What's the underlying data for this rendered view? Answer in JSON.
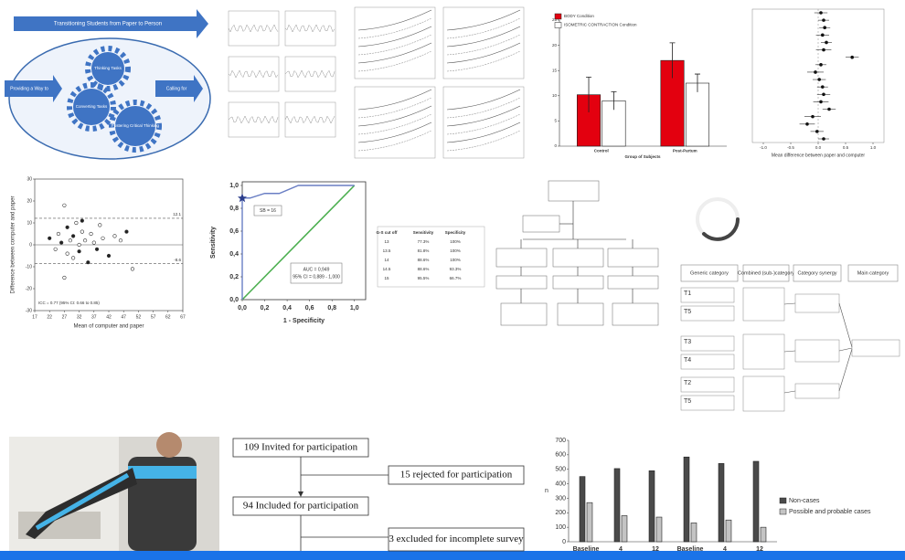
{
  "concept_diagram": {
    "banner": "Transitioning Students from Paper to Person",
    "left_arrow": "Providing a Way to",
    "right_arrow": "Calling for",
    "gears": [
      "Thinking Tasks",
      "Converting Tasks",
      "Fostering Critical Thinking"
    ]
  },
  "condition_chart": {
    "type": "bar",
    "categories": [
      "Control",
      "Post-Partum"
    ],
    "series": [
      {
        "name": "BODY Condition",
        "color": "#e3000f",
        "values": [
          10.2,
          17
        ],
        "errors": [
          3.5,
          3.5
        ]
      },
      {
        "name": "ISOMETRIC CONTRACTION Condition",
        "color": "#ffffff",
        "values": [
          9,
          12.5
        ],
        "errors": [
          1.8,
          1.8
        ]
      }
    ],
    "x_label": "Group of Subjects",
    "ylim": [
      0,
      25
    ],
    "yticks": [
      0,
      5,
      10,
      15,
      20,
      25
    ]
  },
  "forest_plot": {
    "type": "forest",
    "x_label": "Mean difference between paper and computer",
    "xlim": [
      -1.2,
      1.2
    ],
    "xticks": [
      {
        "value": -1,
        "label": "-1.0"
      },
      -0.5,
      {
        "value": 0,
        "label": "0.0"
      },
      0.5,
      {
        "value": 1,
        "label": "1.0"
      }
    ],
    "means": [
      0.05,
      0.1,
      0.12,
      0.08,
      0.15,
      0.1,
      0.62,
      0.05,
      -0.05,
      0.02,
      0.08,
      0.1,
      0.05,
      0.2,
      -0.1,
      -0.2,
      -0.02,
      0.1
    ],
    "errors": [
      0.12,
      0.1,
      0.1,
      0.12,
      0.1,
      0.14,
      0.12,
      0.1,
      0.15,
      0.12,
      0.1,
      0.12,
      0.14,
      0.12,
      0.15,
      0.14,
      0.12,
      0.1
    ]
  },
  "bland_altman": {
    "type": "scatter",
    "x_label": "Mean of computer and paper",
    "y_label": "Difference between computer and paper",
    "xlim": [
      17,
      67
    ],
    "xticks": [
      17,
      22,
      27,
      32,
      37,
      42,
      47,
      52,
      57,
      62,
      67
    ],
    "ylim": [
      -30,
      30
    ],
    "yticks": [
      -30,
      -20,
      -10,
      0,
      10,
      20,
      30
    ],
    "x": [
      22,
      24,
      25,
      26,
      27,
      28,
      28,
      29,
      30,
      30,
      31,
      32,
      32,
      33,
      34,
      35,
      36,
      37,
      38,
      39,
      40,
      42,
      44,
      46,
      48,
      50,
      27,
      33
    ],
    "y": [
      3,
      -2,
      5,
      1,
      18,
      -4,
      8,
      2,
      -6,
      4,
      10,
      0,
      -3,
      6,
      2,
      -8,
      5,
      1,
      -2,
      9,
      3,
      -5,
      4,
      2,
      6,
      -11,
      -15,
      11
    ],
    "upper_limit": 12.1,
    "lower_limit": -8.6,
    "annotation": "ICC = 0.77 (95% CI: 0.66 to 0.85)"
  },
  "roc_curve": {
    "type": "line",
    "x_label": "1 - Specificity",
    "y_label": "Sensitivity",
    "xlim": [
      0,
      1.1
    ],
    "ylim": [
      0,
      1
    ],
    "xticks": [
      {
        "value": 0,
        "label": "0,0"
      },
      {
        "value": 0.2,
        "label": "0,2"
      },
      {
        "value": 0.4,
        "label": "0,4"
      },
      {
        "value": 0.6,
        "label": "0,6"
      },
      {
        "value": 0.8,
        "label": "0,8"
      },
      {
        "value": 1,
        "label": "1,0"
      }
    ],
    "yticks": [
      {
        "value": 0,
        "label": "0,0"
      },
      {
        "value": 0.2,
        "label": "0,2"
      },
      {
        "value": 0.4,
        "label": "0,4"
      },
      {
        "value": 0.6,
        "label": "0,6"
      },
      {
        "value": 0.8,
        "label": "0,8"
      },
      {
        "value": 1,
        "label": "1,0"
      }
    ],
    "x": [
      0,
      0,
      0.07,
      0.2,
      0.33,
      0.5,
      1
    ],
    "y": [
      0,
      0.89,
      0.89,
      0.93,
      0.93,
      1,
      1
    ],
    "cut_off_label": "SB = 16",
    "annotations": [
      "AUC = 0,949",
      "95% CI = 0,889 - 1,000"
    ]
  },
  "cutoff_table": {
    "headers": [
      "G-S cut off",
      "Sensitivity",
      "Specificity"
    ],
    "rows": [
      [
        "13",
        "77.3%",
        "100%"
      ],
      [
        "13.5",
        "81.8%",
        "100%"
      ],
      [
        "14",
        "88.6%",
        "100%"
      ],
      [
        "14.5",
        "88.6%",
        "93.3%"
      ],
      [
        "15",
        "95.5%",
        "66.7%"
      ]
    ]
  },
  "category_table": {
    "headers": [
      "Generic category",
      "Combined (sub-)category",
      "Category synergy",
      "Main category"
    ],
    "codes": [
      "T1",
      "T5",
      "T3",
      "T4",
      "T2",
      "T5"
    ]
  },
  "participant_flow": {
    "steps": [
      "109 Invited for participation",
      "94 Included for participation"
    ],
    "exclusions": [
      "15 rejected for participation",
      "3 excluded for incomplete survey"
    ]
  },
  "cases_chart": {
    "type": "bar",
    "categories": [
      "Baseline",
      "4",
      "12",
      "Baseline",
      "4",
      "12"
    ],
    "series": [
      {
        "name": "Non-cases",
        "color": "#4a4a4a",
        "values": [
          450,
          505,
          490,
          585,
          540,
          555
        ]
      },
      {
        "name": "Possible and probable cases",
        "color": "#c4c4c4",
        "values": [
          270,
          180,
          170,
          130,
          150,
          100
        ]
      }
    ],
    "y_label": "n",
    "ylim": [
      0,
      700
    ],
    "yticks": [
      0,
      100,
      200,
      300,
      400,
      500,
      600,
      700
    ]
  }
}
